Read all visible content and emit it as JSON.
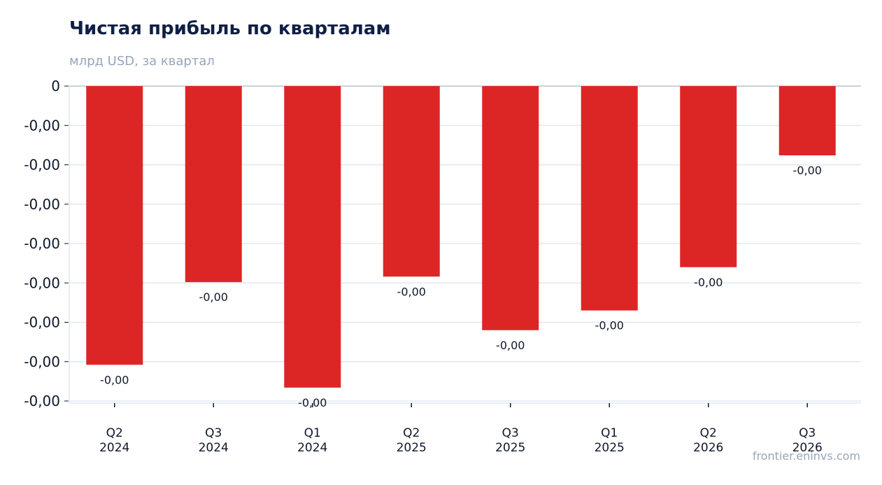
{
  "header": {
    "title": "Чистая прибыль по кварталам",
    "subtitle": "млрд USD, за квартал"
  },
  "footer": {
    "source": "frontier.eninvs.com"
  },
  "colors": {
    "bar": "#dc2626",
    "grid": "#e2e8f0",
    "axis": "#94a3b8",
    "text": "#0f172a"
  },
  "chart_data": {
    "type": "bar",
    "title": "Чистая прибыль по кварталам",
    "subtitle": "млрд USD, за квартал",
    "categories": [
      "Q2\n2024",
      "Q3\n2024",
      "Q1\n2024",
      "Q2\n2025",
      "Q3\n2025",
      "Q1\n2025",
      "Q2\n2026",
      "Q3\n2026"
    ],
    "values": [
      -0.00354,
      -0.00249,
      -0.00383,
      -0.00242,
      -0.0031,
      -0.00285,
      -0.0023,
      -0.00088
    ],
    "data_labels": [
      "-0,00",
      "-0,00",
      "-0,00",
      "-0,00",
      "-0,00",
      "-0,00",
      "-0,00",
      "-0,00"
    ],
    "y_tick_labels": [
      "0",
      "-0,00",
      "-0,00",
      "-0,00",
      "-0,00",
      "-0,00",
      "-0,00",
      "-0,00",
      "-0,00"
    ],
    "ylim": [
      -0.004,
      0
    ],
    "grid": true
  }
}
